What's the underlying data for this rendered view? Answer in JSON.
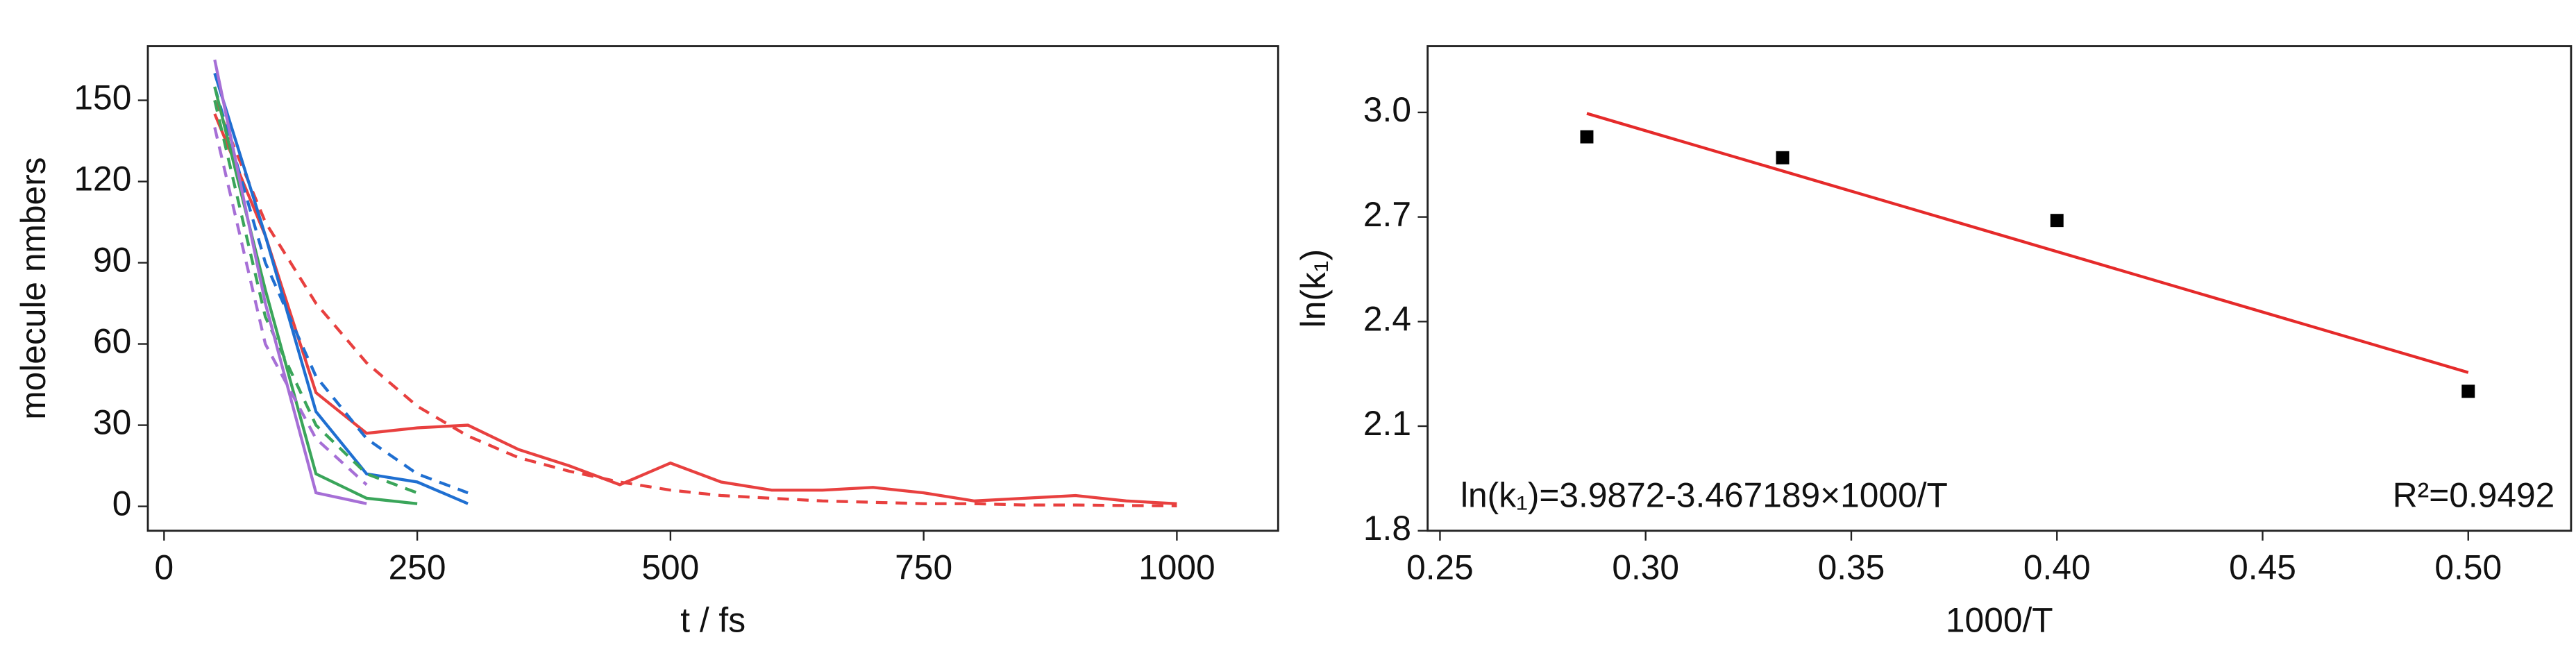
{
  "chart_data": [
    {
      "type": "line",
      "xlabel": "t / fs",
      "ylabel": "molecule nmbers",
      "xlim": [
        -16,
        1100
      ],
      "ylim": [
        -9,
        170
      ],
      "xticks": [
        0,
        250,
        500,
        750,
        1000
      ],
      "yticks": [
        0,
        30,
        60,
        90,
        120,
        150
      ],
      "series": [
        {
          "color": "#e8403f",
          "dashed": false,
          "x": [
            50,
            100,
            150,
            200,
            250,
            300,
            350,
            400,
            450,
            500,
            550,
            600,
            650,
            700,
            750,
            800,
            850,
            900,
            950,
            1000
          ],
          "values": [
            145,
            100,
            42,
            27,
            29,
            30,
            21,
            15,
            8,
            16,
            9,
            6,
            6,
            7,
            5,
            2,
            3,
            4,
            2,
            1
          ]
        },
        {
          "color": "#e8403f",
          "dashed": true,
          "x": [
            50,
            100,
            150,
            200,
            250,
            300,
            350,
            400,
            450,
            500,
            550,
            600,
            650,
            700,
            750,
            800,
            850,
            900,
            950,
            1000
          ],
          "values": [
            150,
            105,
            75,
            53,
            37,
            26,
            18,
            13,
            9,
            6,
            4,
            3,
            2,
            1.5,
            1,
            1,
            0.5,
            0.5,
            0.3,
            0.2
          ]
        },
        {
          "color": "#1f6fd1",
          "dashed": false,
          "x": [
            50,
            100,
            150,
            200,
            250,
            300
          ],
          "values": [
            160,
            100,
            35,
            12,
            9,
            1
          ]
        },
        {
          "color": "#1f6fd1",
          "dashed": true,
          "x": [
            50,
            100,
            150,
            200,
            250,
            300
          ],
          "values": [
            155,
            90,
            48,
            25,
            12,
            5
          ]
        },
        {
          "color": "#3aa55a",
          "dashed": false,
          "x": [
            50,
            100,
            150,
            200,
            250
          ],
          "values": [
            155,
            80,
            12,
            3,
            1
          ]
        },
        {
          "color": "#3aa55a",
          "dashed": true,
          "x": [
            50,
            100,
            150,
            200,
            250
          ],
          "values": [
            150,
            70,
            30,
            12,
            5
          ]
        },
        {
          "color": "#a66fd6",
          "dashed": false,
          "x": [
            50,
            100,
            150,
            200
          ],
          "values": [
            165,
            75,
            5,
            1
          ]
        },
        {
          "color": "#a66fd6",
          "dashed": true,
          "x": [
            50,
            100,
            150,
            200
          ],
          "values": [
            140,
            60,
            25,
            8
          ]
        }
      ]
    },
    {
      "type": "scatter",
      "xlabel": "1000/T",
      "ylabel": "ln(k₁)",
      "xlim": [
        0.247,
        0.525
      ],
      "ylim": [
        1.8,
        3.19
      ],
      "xticks": [
        0.25,
        {
          "value": 0.3,
          "label": "0.30"
        },
        0.35,
        {
          "value": 0.4,
          "label": "0.40"
        },
        0.45,
        {
          "value": 0.5,
          "label": "0.50"
        }
      ],
      "yticks": [
        1.8,
        2.1,
        2.4,
        2.7,
        {
          "value": 3,
          "label": "3.0"
        }
      ],
      "x": [
        0.2857,
        0.3333,
        0.4,
        0.5
      ],
      "values": [
        2.93,
        2.87,
        2.69,
        2.2
      ],
      "color": "#000000",
      "fit": {
        "x": [
          0.2857,
          0.5
        ],
        "values": [
          2.997,
          2.254
        ],
        "color": "#e52a2a"
      },
      "equation": "ln(k₁)=3.9872-3.467189×1000/T",
      "r2": "R²=0.9492"
    }
  ]
}
